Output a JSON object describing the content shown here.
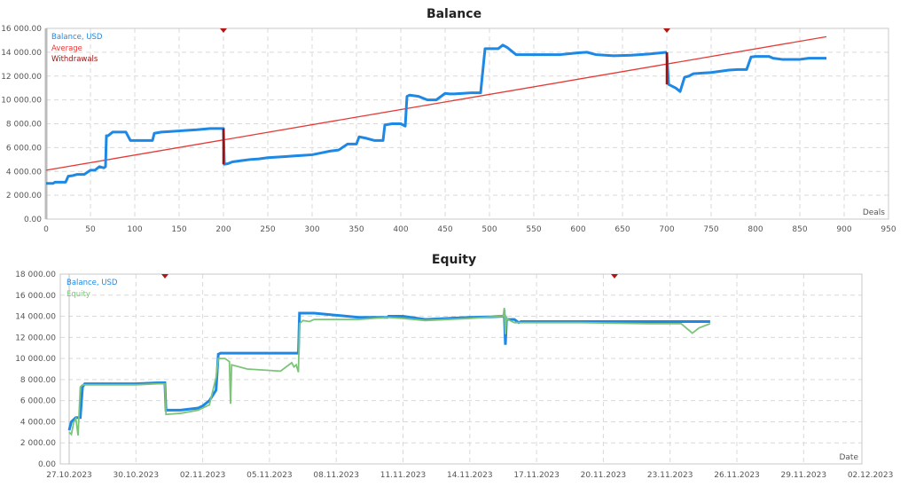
{
  "chart_data": [
    {
      "type": "line",
      "title": "Balance",
      "xlabel": "Deals",
      "ylabel": "",
      "xlim": [
        0,
        950
      ],
      "ylim": [
        0,
        16000
      ],
      "grid": true,
      "legend_position": "top-left inside",
      "x_ticks": [
        "0",
        "50",
        "100",
        "150",
        "200",
        "250",
        "300",
        "350",
        "400",
        "450",
        "500",
        "550",
        "600",
        "650",
        "700",
        "750",
        "800",
        "850",
        "900",
        "950"
      ],
      "y_ticks": [
        "0.00",
        "2 000.00",
        "4 000.00",
        "6 000.00",
        "8 000.00",
        "10 000.00",
        "12 000.00",
        "14 000.00",
        "16 000.00"
      ],
      "legend": [
        {
          "name": "Balance, USD",
          "color": "#1e88e5"
        },
        {
          "name": "Average",
          "color": "#e53935"
        },
        {
          "name": "Withdrawals",
          "color": "#9b1010"
        }
      ],
      "series": [
        {
          "name": "Balance, USD",
          "x": [
            0,
            8,
            10,
            22,
            25,
            30,
            35,
            43,
            50,
            55,
            60,
            65,
            67,
            68,
            70,
            75,
            90,
            95,
            100,
            110,
            120,
            122,
            130,
            140,
            150,
            160,
            170,
            185,
            200,
            201,
            205,
            210,
            220,
            230,
            240,
            250,
            260,
            270,
            280,
            290,
            300,
            310,
            320,
            330,
            340,
            350,
            353,
            360,
            370,
            380,
            382,
            390,
            400,
            405,
            407,
            410,
            420,
            430,
            440,
            450,
            455,
            460,
            470,
            480,
            490,
            495,
            497,
            500,
            510,
            515,
            520,
            525,
            530,
            550,
            580,
            600,
            610,
            620,
            640,
            660,
            680,
            700
          ],
          "y": [
            3000,
            3000,
            3100,
            3100,
            3600,
            3650,
            3750,
            3750,
            4100,
            4100,
            4400,
            4300,
            4400,
            7000,
            7000,
            7300,
            7300,
            6600,
            6600,
            6600,
            6600,
            7200,
            7300,
            7350,
            7400,
            7450,
            7500,
            7600,
            7600,
            4600,
            4650,
            4800,
            4900,
            5000,
            5050,
            5150,
            5200,
            5250,
            5300,
            5350,
            5400,
            5550,
            5700,
            5800,
            6300,
            6300,
            6900,
            6800,
            6600,
            6600,
            7900,
            8000,
            8000,
            7800,
            10300,
            10400,
            10300,
            10000,
            10000,
            10550,
            10500,
            10500,
            10550,
            10600,
            10600,
            14300,
            14300,
            14300,
            14300,
            14600,
            14400,
            14100,
            13800,
            13800,
            13800,
            13950,
            14000,
            13800,
            13700,
            13750,
            13850,
            14000
          ]
        },
        {
          "name": "Balance, USD (after 700)",
          "x": [
            700,
            702,
            710,
            715,
            720,
            725,
            730,
            740,
            750,
            760,
            770,
            780,
            790,
            795,
            800,
            815,
            820,
            830,
            850,
            860,
            880
          ],
          "y": [
            14000,
            11300,
            11000,
            10700,
            11900,
            12000,
            12200,
            12250,
            12300,
            12400,
            12500,
            12550,
            12550,
            13600,
            13650,
            13650,
            13500,
            13400,
            13400,
            13500,
            13500
          ]
        },
        {
          "name": "Average",
          "x": [
            0,
            880
          ],
          "y": [
            4100,
            15300
          ]
        },
        {
          "name": "Withdrawals",
          "points": [
            {
              "x": 200,
              "from": 7600,
              "to": 4600
            },
            {
              "x": 700,
              "from": 14000,
              "to": 11300
            }
          ]
        }
      ]
    },
    {
      "type": "line",
      "title": "Equity",
      "xlabel": "Date",
      "ylabel": "",
      "ylim": [
        0,
        18000
      ],
      "grid": true,
      "legend_position": "top-left inside",
      "x_ticks": [
        "27.10.2023",
        "30.10.2023",
        "02.11.2023",
        "05.11.2023",
        "08.11.2023",
        "11.11.2023",
        "14.11.2023",
        "17.11.2023",
        "20.11.2023",
        "23.11.2023",
        "26.11.2023",
        "29.11.2023",
        "02.12.2023"
      ],
      "y_ticks": [
        "0.00",
        "2 000.00",
        "4 000.00",
        "6 000.00",
        "8 000.00",
        "10 000.00",
        "12 000.00",
        "14 000.00",
        "16 000.00",
        "18 000.00"
      ],
      "legend": [
        {
          "name": "Balance, USD",
          "color": "#1e88e5"
        },
        {
          "name": "Equity",
          "color": "#7cc47a"
        }
      ],
      "series": [
        {
          "name": "Balance, USD",
          "x_days": [
            0,
            0.1,
            0.3,
            0.4,
            0.5,
            0.6,
            0.7,
            0.75,
            1,
            3,
            4,
            4.3,
            4.35,
            5,
            5.8,
            6,
            6.3,
            6.6,
            6.7,
            6.8,
            7,
            8,
            10.3,
            10.35,
            11,
            13,
            14.3,
            14.35,
            15,
            16,
            18,
            19,
            19.5,
            19.55,
            19.6,
            19.65,
            20,
            20.2,
            20.3,
            23,
            26,
            28.2,
            28.8
          ],
          "y": [
            3200,
            4000,
            4400,
            4400,
            4400,
            7300,
            7600,
            7600,
            7600,
            7600,
            7700,
            7700,
            5100,
            5100,
            5300,
            5500,
            6000,
            7000,
            10400,
            10500,
            10500,
            10500,
            10500,
            14300,
            14300,
            13900,
            13900,
            14000,
            14000,
            13700,
            13900,
            13950,
            14000,
            14200,
            11300,
            13700,
            13700,
            13400,
            13500,
            13500,
            13500,
            13500,
            13500
          ]
        },
        {
          "name": "Equity",
          "x_days": [
            0,
            0.1,
            0.2,
            0.3,
            0.4,
            0.5,
            0.55,
            0.6,
            0.7,
            1,
            3,
            4,
            4.3,
            4.35,
            5,
            5.8,
            6,
            6.3,
            6.6,
            6.7,
            7,
            7.2,
            7.25,
            7.3,
            8,
            9.5,
            10,
            10.1,
            10.2,
            10.3,
            10.35,
            10.5,
            10.8,
            11,
            13,
            14.3,
            15,
            16,
            18,
            19,
            19.5,
            19.55,
            19.6,
            19.65,
            19.7,
            20,
            20.5,
            23,
            26,
            27.5,
            28,
            28.3,
            28.8
          ],
          "y": [
            3000,
            2800,
            3900,
            4300,
            2700,
            7300,
            7400,
            7500,
            7500,
            7500,
            7500,
            7600,
            7600,
            4700,
            4800,
            5100,
            5300,
            5600,
            8200,
            10000,
            10000,
            9700,
            5700,
            9400,
            9000,
            8800,
            9600,
            9200,
            9400,
            8700,
            13300,
            13600,
            13500,
            13700,
            13700,
            13900,
            13800,
            13600,
            13800,
            13950,
            14000,
            14800,
            12300,
            13900,
            13700,
            13400,
            13400,
            13400,
            13300,
            13300,
            12400,
            12900,
            13300
          ]
        }
      ],
      "markers": [
        "withdrawal-marker near 01.11.2023",
        "withdrawal-marker near 20.11.2023"
      ]
    }
  ],
  "balance_chart": {
    "title": "Balance",
    "xlabel": "Deals",
    "legend": {
      "balance": "Balance, USD",
      "average": "Average",
      "withdrawals": "Withdrawals"
    }
  },
  "equity_chart": {
    "title": "Equity",
    "xlabel": "Date",
    "legend": {
      "balance": "Balance, USD",
      "equity": "Equity"
    }
  },
  "colors": {
    "balance": "#1e88e5",
    "average": "#e53935",
    "withdrawals": "#9b1010",
    "equity": "#7cc47a",
    "grid": "#d9d9d9",
    "frame": "#c8c8c8"
  }
}
